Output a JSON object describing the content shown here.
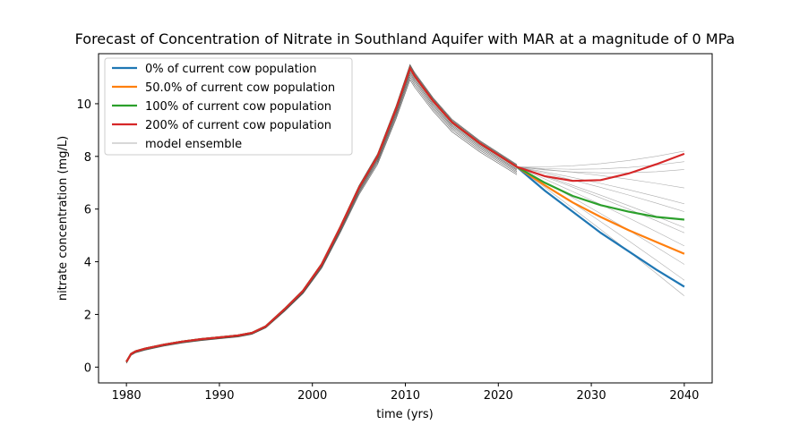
{
  "chart_data": {
    "type": "line",
    "title": "Forecast of Concentration of Nitrate in Southland Aquifer with MAR at a magnitude of 0 MPa",
    "xlabel": "time (yrs)",
    "ylabel": "nitrate concentration (mg/L)",
    "xlim": [
      1977,
      2043
    ],
    "ylim": [
      -0.6,
      11.9
    ],
    "x_ticks": [
      1980,
      1990,
      2000,
      2010,
      2020,
      2030,
      2040
    ],
    "x_tick_labels": [
      "1980",
      "1990",
      "2000",
      "2010",
      "2020",
      "2030",
      "2040"
    ],
    "y_ticks": [
      0,
      2,
      4,
      6,
      8,
      10
    ],
    "y_tick_labels": [
      "0",
      "2",
      "4",
      "6",
      "8",
      "10"
    ],
    "grid": false,
    "legend_position": "upper-left",
    "history": {
      "x": [
        1980,
        1980.5,
        1981,
        1982,
        1984,
        1986,
        1988,
        1990,
        1992,
        1993.5,
        1995,
        1997,
        1999,
        2001,
        2003,
        2005,
        2007,
        2009,
        2010.5,
        2011,
        2013,
        2015,
        2018,
        2020,
        2022
      ],
      "y": [
        0.2,
        0.5,
        0.6,
        0.7,
        0.85,
        0.97,
        1.06,
        1.13,
        1.2,
        1.3,
        1.55,
        2.2,
        2.9,
        3.9,
        5.3,
        6.8,
        8.0,
        9.8,
        11.35,
        11.05,
        10.1,
        9.3,
        8.5,
        8.05,
        7.6
      ]
    },
    "forecast_x": [
      2022,
      2025,
      2028,
      2031,
      2034,
      2037,
      2040
    ],
    "series": [
      {
        "name": "0% of current cow population",
        "color": "#1f77b4",
        "values": [
          7.6,
          6.7,
          5.9,
          5.1,
          4.4,
          3.7,
          3.05
        ]
      },
      {
        "name": "50.0% of current cow population",
        "color": "#ff7f0e",
        "values": [
          7.6,
          6.9,
          6.25,
          5.7,
          5.2,
          4.75,
          4.3
        ]
      },
      {
        "name": "100% of current cow population",
        "color": "#2ca02c",
        "values": [
          7.6,
          7.0,
          6.5,
          6.15,
          5.9,
          5.7,
          5.6
        ]
      },
      {
        "name": "200% of current cow population",
        "color": "#d62728",
        "values": [
          7.6,
          7.25,
          7.07,
          7.1,
          7.35,
          7.7,
          8.1
        ]
      }
    ],
    "ensemble": {
      "name": "model ensemble",
      "color": "#555555",
      "offsets": [
        -0.7,
        -0.55,
        -0.42,
        -0.3,
        -0.2,
        -0.1,
        0.0,
        0.08,
        0.15,
        0.22
      ],
      "forecast_ends": [
        2.7,
        3.3,
        3.9,
        4.6,
        5.1,
        5.3,
        5.9,
        6.8,
        7.5,
        8.2,
        7.8,
        6.2
      ]
    }
  }
}
